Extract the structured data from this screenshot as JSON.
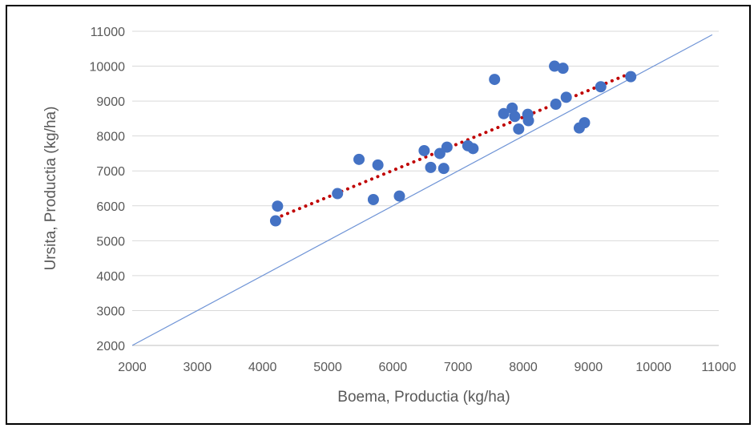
{
  "chart_data": {
    "type": "scatter",
    "xlabel": "Boema, Productia (kg/ha)",
    "ylabel": "Ursita, Productia (kg/ha)",
    "xlim": [
      2000,
      11000
    ],
    "ylim": [
      2000,
      11000
    ],
    "xticks": [
      2000,
      3000,
      4000,
      5000,
      6000,
      7000,
      8000,
      9000,
      10000,
      11000
    ],
    "yticks": [
      2000,
      3000,
      4000,
      5000,
      6000,
      7000,
      8000,
      9000,
      10000,
      11000
    ],
    "grid": "horizontal",
    "legend": "none",
    "points": [
      {
        "x": 4200,
        "y": 5570
      },
      {
        "x": 4230,
        "y": 5990
      },
      {
        "x": 5150,
        "y": 6350
      },
      {
        "x": 5480,
        "y": 7330
      },
      {
        "x": 5700,
        "y": 6180
      },
      {
        "x": 5770,
        "y": 7170
      },
      {
        "x": 6100,
        "y": 6280
      },
      {
        "x": 6480,
        "y": 7580
      },
      {
        "x": 6580,
        "y": 7100
      },
      {
        "x": 6720,
        "y": 7500
      },
      {
        "x": 6780,
        "y": 7070
      },
      {
        "x": 6830,
        "y": 7680
      },
      {
        "x": 7150,
        "y": 7720
      },
      {
        "x": 7230,
        "y": 7640
      },
      {
        "x": 7560,
        "y": 9620
      },
      {
        "x": 7700,
        "y": 8640
      },
      {
        "x": 7830,
        "y": 8800
      },
      {
        "x": 7870,
        "y": 8560
      },
      {
        "x": 7930,
        "y": 8200
      },
      {
        "x": 8070,
        "y": 8620
      },
      {
        "x": 8080,
        "y": 8440
      },
      {
        "x": 8480,
        "y": 10000
      },
      {
        "x": 8500,
        "y": 8910
      },
      {
        "x": 8610,
        "y": 9940
      },
      {
        "x": 8660,
        "y": 9110
      },
      {
        "x": 8860,
        "y": 8230
      },
      {
        "x": 8940,
        "y": 8380
      },
      {
        "x": 9190,
        "y": 9410
      },
      {
        "x": 9650,
        "y": 9700
      }
    ],
    "trendline": {
      "x": [
        4200,
        9650
      ],
      "y": [
        5640,
        9800
      ]
    },
    "reference_line": {
      "x": [
        2000,
        10900
      ],
      "y": [
        2000,
        10900
      ]
    },
    "colors": {
      "points": "#4472c4",
      "trendline": "#c00000",
      "reference_line": "#6f94d6",
      "grid": "#d9d9d9",
      "text": "#595959"
    }
  }
}
